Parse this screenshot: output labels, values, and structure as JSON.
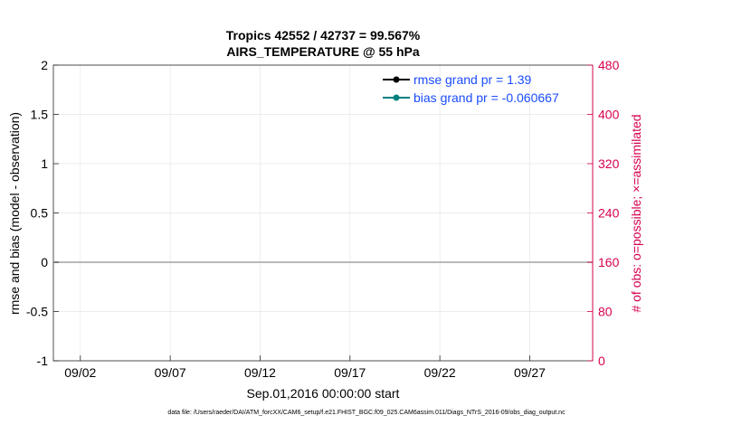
{
  "chart_data": {
    "type": "line",
    "title": "Tropics 42552 / 42737 = 99.567%",
    "subtitle": "AIRS_TEMPERATURE @ 55 hPa",
    "xlabel": "Sep.01,2016 00:00:00 start",
    "ylabel_left": "rmse and bias (model - observation)",
    "ylabel_right": "# of obs: o=possible; ×=assimilated",
    "footnote": "data file: /Users/raeder/DAI/ATM_forcXX/CAM6_setup/f.e21.FHIST_BGC.f09_025.CAM6assim.011/Diags_NTrS_2016-09/obs_diag_output.nc",
    "xlim": [
      0.5,
      30.5
    ],
    "ylim_left": [
      -1,
      2
    ],
    "ylim_right": [
      0,
      480
    ],
    "y_ticks_left": [
      "-1",
      "-0.5",
      "0",
      "0.5",
      "1",
      "1.5",
      "2"
    ],
    "y_ticks_right": [
      "0",
      "80",
      "160",
      "240",
      "320",
      "400",
      "480"
    ],
    "x_ticks": [
      {
        "day": 2,
        "label": "09/02"
      },
      {
        "day": 7,
        "label": "09/07"
      },
      {
        "day": 12,
        "label": "09/12"
      },
      {
        "day": 17,
        "label": "09/17"
      },
      {
        "day": 22,
        "label": "09/22"
      },
      {
        "day": 27,
        "label": "09/27"
      }
    ],
    "legend": {
      "rmse": "rmse grand pr = 1.39",
      "bias": "bias grand pr = -0.060667"
    },
    "colors": {
      "rmse": "#000000",
      "bias": "#008080",
      "obs": "#d6004f",
      "zero": "#b9b9b9"
    },
    "series": [
      {
        "name": "rmse",
        "x": [],
        "y": []
      },
      {
        "name": "bias",
        "x": [],
        "y": []
      },
      {
        "name": "obs_possible",
        "x": [],
        "y": []
      },
      {
        "name": "obs_assimilated",
        "x": [],
        "y": []
      }
    ]
  }
}
